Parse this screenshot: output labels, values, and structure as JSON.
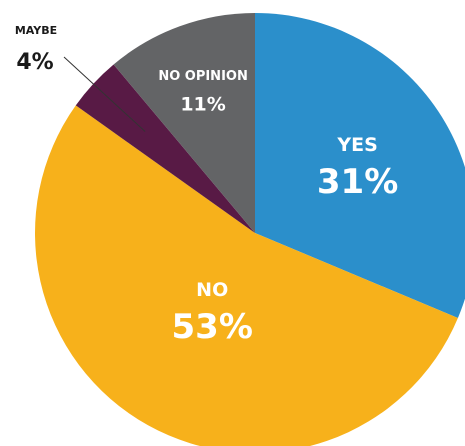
{
  "chart_data": {
    "type": "pie",
    "start_angle_deg": 0,
    "direction": "clockwise",
    "slices": [
      {
        "label": "YES",
        "value": 31,
        "value_label": "31%",
        "color": "#2b8fcb"
      },
      {
        "label": "NO",
        "value": 53,
        "value_label": "53%",
        "color": "#f7b11b"
      },
      {
        "label": "MAYBE",
        "value": 4,
        "value_label": "4%",
        "color": "#581a45",
        "label_outside": true
      },
      {
        "label": "NO OPINION",
        "value": 11,
        "value_label": "11%",
        "color": "#636466"
      }
    ]
  }
}
